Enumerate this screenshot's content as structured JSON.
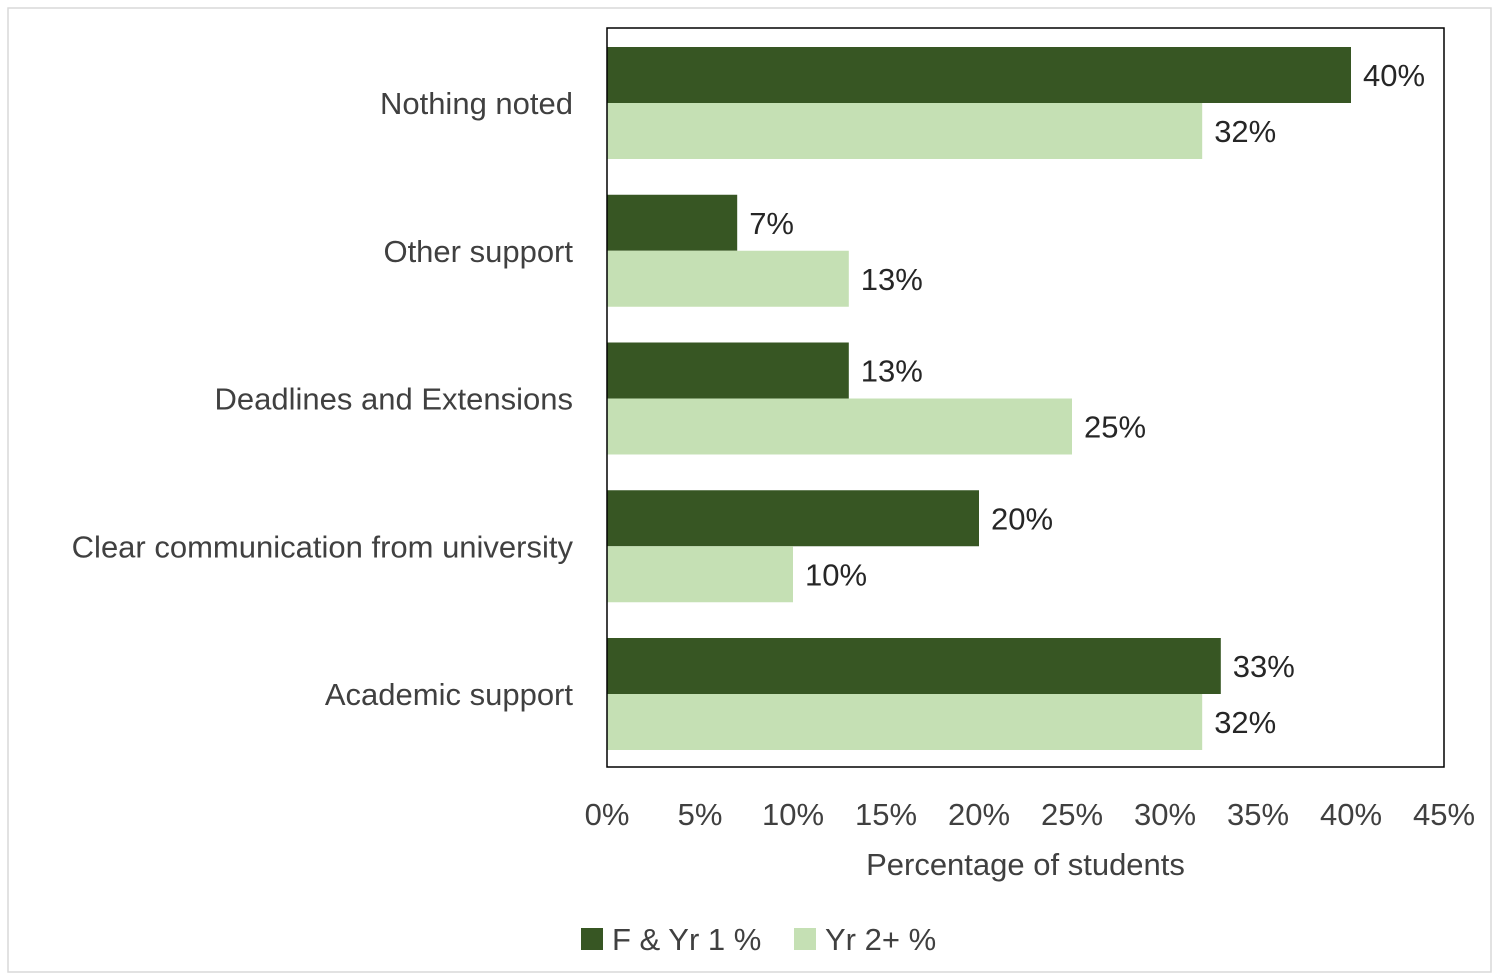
{
  "chart_data": {
    "type": "bar",
    "orientation": "horizontal",
    "categories": [
      "Academic support",
      "Clear communication from university",
      "Deadlines and Extensions",
      "Other support",
      "Nothing noted"
    ],
    "series": [
      {
        "name": "F & Yr 1 %",
        "values": [
          33,
          20,
          13,
          7,
          40
        ],
        "labels": [
          "33%",
          "20%",
          "13%",
          "7%",
          "40%"
        ],
        "color": "#375623"
      },
      {
        "name": "Yr 2+ %",
        "values": [
          32,
          10,
          25,
          13,
          32
        ],
        "labels": [
          "32%",
          "10%",
          "25%",
          "13%",
          "32%"
        ],
        "color": "#c5e0b4"
      }
    ],
    "xlim": [
      0,
      45
    ],
    "xticks": [
      0,
      5,
      10,
      15,
      20,
      25,
      30,
      35,
      40,
      45
    ],
    "xtick_labels": [
      "0%",
      "5%",
      "10%",
      "15%",
      "20%",
      "25%",
      "30%",
      "35%",
      "40%",
      "45%"
    ],
    "xlabel": "Percentage of students",
    "ylabel": "",
    "title": "",
    "grid": false,
    "legend_position": "bottom"
  }
}
